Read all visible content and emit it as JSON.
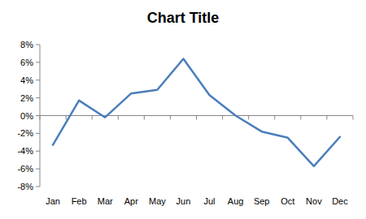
{
  "chart_data": {
    "type": "line",
    "title": "Chart Title",
    "categories": [
      "Jan",
      "Feb",
      "Mar",
      "Apr",
      "May",
      "Jun",
      "Jul",
      "Aug",
      "Sep",
      "Oct",
      "Nov",
      "Dec"
    ],
    "values": [
      -3.3,
      1.7,
      -0.2,
      2.5,
      2.9,
      6.4,
      2.3,
      0.0,
      -1.8,
      -2.5,
      -5.7,
      -2.4
    ],
    "color": "#4a7ebb",
    "ylim": [
      -8,
      8
    ],
    "yticks": [
      {
        "value": -8,
        "label": "-8%"
      },
      {
        "value": -6,
        "label": "-6%"
      },
      {
        "value": -4,
        "label": "-4%"
      },
      {
        "value": -2,
        "label": "-2%"
      },
      {
        "value": 0,
        "label": "0%"
      },
      {
        "value": 2,
        "label": "2%"
      },
      {
        "value": 4,
        "label": "4%"
      },
      {
        "value": 6,
        "label": "6%"
      },
      {
        "value": 8,
        "label": "8%"
      }
    ],
    "grid": false
  }
}
